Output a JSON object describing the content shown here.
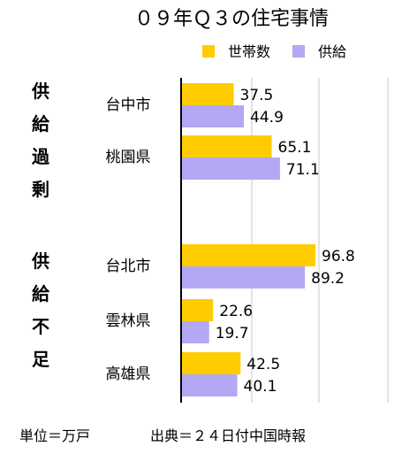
{
  "title": "０９年Ｑ３の住宅事情",
  "legend": [
    {
      "name": "世帯数",
      "color": "#FFCC00"
    },
    {
      "name": "供給",
      "color": "#B4A8F4"
    }
  ],
  "groups": [
    {
      "label": "供給過剰",
      "categories": [
        "台中市",
        "桃園県"
      ]
    },
    {
      "label": "供給不足",
      "categories": [
        "台北市",
        "雲林県",
        "高雄県"
      ]
    }
  ],
  "footer": {
    "unit": "単位＝万戸",
    "source": "出典＝２４日付中国時報"
  },
  "chart_data": {
    "type": "bar",
    "orientation": "horizontal",
    "title": "０９年Ｑ３の住宅事情",
    "categories": [
      "台中市",
      "桃園県",
      "台北市",
      "雲林県",
      "高雄県"
    ],
    "series": [
      {
        "name": "世帯数",
        "color": "#FFCC00",
        "values": [
          37.5,
          65.1,
          96.8,
          22.6,
          42.5
        ]
      },
      {
        "name": "供給",
        "color": "#B4A8F4",
        "values": [
          44.9,
          71.1,
          89.2,
          19.7,
          40.1
        ]
      }
    ],
    "xlim": [
      0,
      140
    ],
    "grid": "vertical",
    "legend_position": "top-right"
  }
}
